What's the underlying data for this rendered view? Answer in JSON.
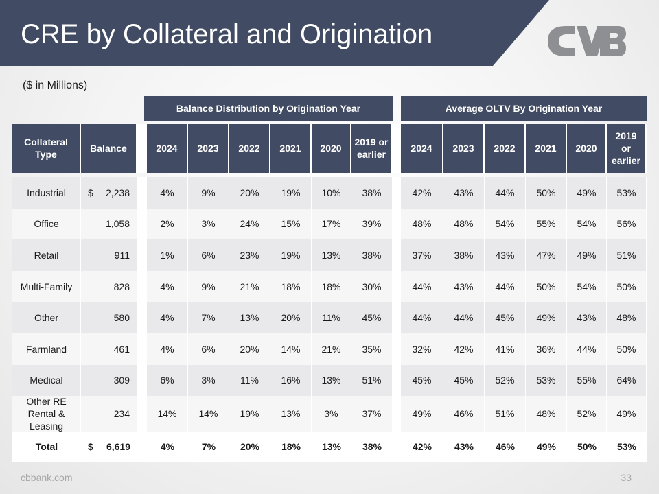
{
  "slide": {
    "title": "CRE by Collateral and Origination",
    "subtitle": "($ in Millions)",
    "footer_site": "cbbank.com",
    "page_number": "33",
    "colors": {
      "banner": "#414b63",
      "header": "#414b63",
      "logo": "#8e8f92"
    }
  },
  "table": {
    "group_headers": {
      "balance_distribution": "Balance Distribution by Origination Year",
      "average_oltv": "Average OLTV By Origination Year"
    },
    "columns": {
      "collateral_type": "Collateral Type",
      "balance": "Balance",
      "dist_years": [
        "2024",
        "2023",
        "2022",
        "2021",
        "2020",
        "2019 or earlier"
      ],
      "oltv_years": [
        "2024",
        "2023",
        "2022",
        "2021",
        "2020",
        "2019 or earlier"
      ]
    },
    "rows": [
      {
        "type": "Industrial",
        "cur": "$",
        "balance": "2,238",
        "dist": [
          "4%",
          "9%",
          "20%",
          "19%",
          "10%",
          "38%"
        ],
        "oltv": [
          "42%",
          "43%",
          "44%",
          "50%",
          "49%",
          "53%"
        ]
      },
      {
        "type": "Office",
        "cur": "",
        "balance": "1,058",
        "dist": [
          "2%",
          "3%",
          "24%",
          "15%",
          "17%",
          "39%"
        ],
        "oltv": [
          "48%",
          "48%",
          "54%",
          "55%",
          "54%",
          "56%"
        ]
      },
      {
        "type": "Retail",
        "cur": "",
        "balance": "911",
        "dist": [
          "1%",
          "6%",
          "23%",
          "19%",
          "13%",
          "38%"
        ],
        "oltv": [
          "37%",
          "38%",
          "43%",
          "47%",
          "49%",
          "51%"
        ]
      },
      {
        "type": "Multi-Family",
        "cur": "",
        "balance": "828",
        "dist": [
          "4%",
          "9%",
          "21%",
          "18%",
          "18%",
          "30%"
        ],
        "oltv": [
          "44%",
          "43%",
          "44%",
          "50%",
          "54%",
          "50%"
        ]
      },
      {
        "type": "Other",
        "cur": "",
        "balance": "580",
        "dist": [
          "4%",
          "7%",
          "13%",
          "20%",
          "11%",
          "45%"
        ],
        "oltv": [
          "44%",
          "44%",
          "45%",
          "49%",
          "43%",
          "48%"
        ]
      },
      {
        "type": "Farmland",
        "cur": "",
        "balance": "461",
        "dist": [
          "4%",
          "6%",
          "20%",
          "14%",
          "21%",
          "35%"
        ],
        "oltv": [
          "32%",
          "42%",
          "41%",
          "36%",
          "44%",
          "50%"
        ]
      },
      {
        "type": "Medical",
        "cur": "",
        "balance": "309",
        "dist": [
          "6%",
          "3%",
          "11%",
          "16%",
          "13%",
          "51%"
        ],
        "oltv": [
          "45%",
          "45%",
          "52%",
          "53%",
          "55%",
          "64%"
        ]
      },
      {
        "type": "Other RE Rental & Leasing",
        "cur": "",
        "balance": "234",
        "dist": [
          "14%",
          "14%",
          "19%",
          "13%",
          "3%",
          "37%"
        ],
        "oltv": [
          "49%",
          "46%",
          "51%",
          "48%",
          "52%",
          "49%"
        ]
      }
    ],
    "total": {
      "type": "Total",
      "cur": "$",
      "balance": "6,619",
      "dist": [
        "4%",
        "7%",
        "20%",
        "18%",
        "13%",
        "38%"
      ],
      "oltv": [
        "42%",
        "43%",
        "46%",
        "49%",
        "50%",
        "53%"
      ]
    }
  }
}
